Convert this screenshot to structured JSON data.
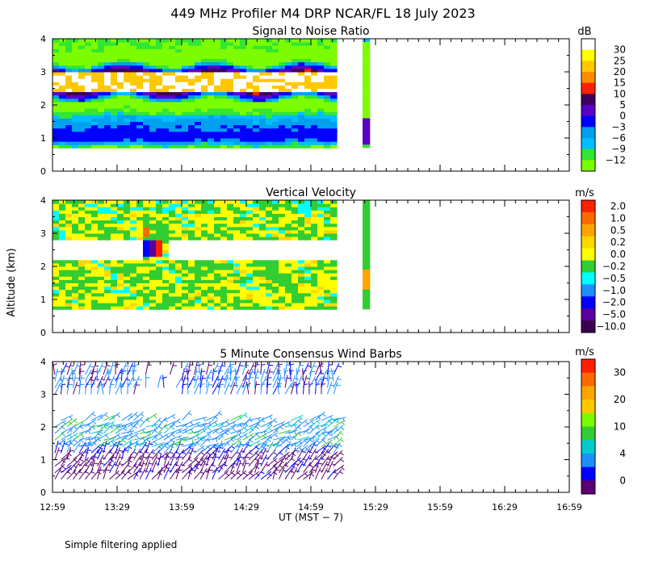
{
  "title": "449 MHz Profiler M4 DRP NCAR/FL 18 July 2023",
  "footnote": "Simple filtering applied",
  "xlabel": "UT  (MST − 7)",
  "ylabel": "Altitude (km)",
  "x_ticks": [
    "12:59",
    "13:29",
    "13:59",
    "14:29",
    "14:59",
    "15:29",
    "15:59",
    "16:29",
    "16:59"
  ],
  "y_ticks": [
    "0",
    "1",
    "2",
    "3",
    "4"
  ],
  "colors": {
    "snr": [
      "#7CFC00",
      "#32E632",
      "#00BFFF",
      "#00A0F0",
      "#0000FF",
      "#5A00C8",
      "#3C005A",
      "#FF2000",
      "#FF8C00",
      "#FFC800",
      "#FFFF00",
      "#FFFFFF"
    ],
    "vv": [
      "#3A0050",
      "#5A00A0",
      "#0000FF",
      "#1E90FF",
      "#00FFFF",
      "#32CD32",
      "#FFFF00",
      "#FFD700",
      "#FFA500",
      "#FF6A00",
      "#FF2000"
    ],
    "wind": [
      "#5A0070",
      "#0000FF",
      "#1E90FF",
      "#00CCCC",
      "#32CD32",
      "#7CFC00",
      "#FFC800",
      "#FFA500",
      "#FF6A00",
      "#FF2000"
    ]
  },
  "chart_data": [
    {
      "type": "heatmap",
      "title": "Signal to Noise Ratio",
      "unit": "dB",
      "colorbar_labels": [
        "30",
        "25",
        "20",
        "15",
        "10",
        "5",
        "0",
        "−3",
        "−6",
        "−9",
        "−12"
      ],
      "xlim": [
        "12:59",
        "16:59"
      ],
      "ylim": [
        0,
        4
      ],
      "data_coverage": [
        [
          "12:59",
          "15:11"
        ],
        [
          "15:23",
          "15:25"
        ]
      ],
      "altitude_range_km": [
        0.7,
        4.0
      ],
      "profile_by_altitude_km": [
        {
          "alt": 0.75,
          "snr_db": -9
        },
        {
          "alt": 0.85,
          "snr_db": -3
        },
        {
          "alt": 1.0,
          "snr_db": 3
        },
        {
          "alt": 1.3,
          "snr_db": 0
        },
        {
          "alt": 1.6,
          "snr_db": -3
        },
        {
          "alt": 1.8,
          "snr_db": -9
        },
        {
          "alt": 2.1,
          "snr_db": -12
        },
        {
          "alt": 2.7,
          "snr_db": 30
        },
        {
          "alt": 3.3,
          "snr_db": -12
        },
        {
          "alt": 3.8,
          "snr_db": -9
        }
      ]
    },
    {
      "type": "heatmap",
      "title": "Vertical Velocity",
      "unit": "m/s",
      "colorbar_labels": [
        "2.0",
        "1.0",
        "0.5",
        "0.2",
        "0.0",
        "−0.2",
        "−0.5",
        "−1.0",
        "−2.0",
        "−5.0",
        "−10.0"
      ],
      "xlim": [
        "12:59",
        "16:59"
      ],
      "ylim": [
        0,
        4
      ],
      "data_coverage": [
        [
          "12:59",
          "15:11"
        ],
        [
          "15:23",
          "15:25"
        ]
      ],
      "altitude_range_km": [
        0.7,
        4.0
      ],
      "gap_band_km": [
        2.2,
        2.8
      ],
      "notable_values": [
        {
          "time": "13:55",
          "alt": 2.6,
          "w_ms": -5.0
        },
        {
          "time": "13:57",
          "alt": 2.5,
          "w_ms": 2.0
        },
        {
          "time": "13:50",
          "alt": 3.0,
          "w_ms": 1.0
        }
      ]
    },
    {
      "type": "scatter",
      "title": "5 Minute Consensus Wind Barbs",
      "unit": "m/s",
      "colorbar_labels": [
        "30",
        "20",
        "10",
        "4",
        "0"
      ],
      "xlim": [
        "12:59",
        "16:59"
      ],
      "ylim": [
        0,
        4
      ],
      "data_coverage": [
        [
          "12:59",
          "15:11"
        ]
      ],
      "gap_band_km": [
        2.2,
        2.9
      ],
      "speed_by_altitude": [
        {
          "alt_range_km": [
            0.4,
            1.2
          ],
          "speed_ms": 2
        },
        {
          "alt_range_km": [
            1.2,
            2.2
          ],
          "speed_ms": 5
        },
        {
          "alt_range_km": [
            2.9,
            3.6
          ],
          "speed_ms": 4
        }
      ]
    }
  ]
}
